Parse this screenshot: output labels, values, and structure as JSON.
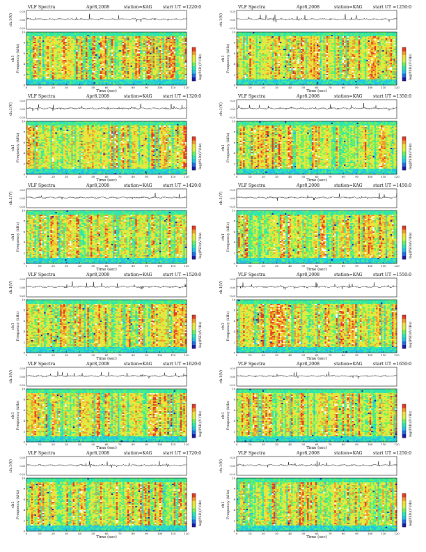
{
  "page": {
    "layout": "6 rows x 2 columns of spectrogram panels"
  },
  "colors": {
    "colormap": [
      "#1a1aa8",
      "#1e6fe6",
      "#22c3e6",
      "#2ee6b0",
      "#6cf060",
      "#d6f045",
      "#f0e13a",
      "#f09a2c",
      "#e63a22",
      "#ffffff"
    ],
    "trace": "#000000",
    "frame": "#000000"
  },
  "chart_data": [
    {
      "type": "heatmap",
      "title": "VLF Spectra",
      "date": "Apr8,2008",
      "station": "station=KAG",
      "start_ut": "start UT =1220:0",
      "ch_label": "ch.1(V)",
      "freq_label": "Frequency (kHz)",
      "channel_tag": "ch1",
      "xlabel": "Time (sec)",
      "colorbar_label": "log(PSD)(V²/Hz)",
      "x_ticks": [
        0,
        10,
        20,
        30,
        40,
        50,
        60,
        70,
        80,
        90,
        100,
        110,
        120
      ],
      "xlim": [
        0,
        120
      ],
      "y_ticks": [
        0,
        2,
        4,
        6,
        8,
        10
      ],
      "ylim": [
        0,
        10
      ],
      "ch_ticks": [
        "0.20",
        "0.00",
        "-0.20"
      ]
    },
    {
      "type": "heatmap",
      "title": "VLF Spectra",
      "date": "Apr8,2008",
      "station": "station=KAG",
      "start_ut": "start UT =1250:0",
      "ch_label": "ch.1(V)",
      "freq_label": "Frequency (kHz)",
      "channel_tag": "ch1",
      "xlabel": "Time (sec)",
      "colorbar_label": "log(PSD)(V²/Hz)",
      "x_ticks": [
        0,
        10,
        20,
        30,
        40,
        50,
        60,
        70,
        80,
        90,
        100,
        110,
        120
      ],
      "xlim": [
        0,
        120
      ],
      "y_ticks": [
        0,
        2,
        4,
        6,
        8,
        10
      ],
      "ylim": [
        0,
        10
      ],
      "ch_ticks": [
        "0.20",
        "0.00",
        "-0.20"
      ]
    },
    {
      "type": "heatmap",
      "title": "VLF Spectra",
      "date": "Apr8,2008",
      "station": "station=KAG",
      "start_ut": "start UT =1320:0",
      "ch_label": "ch.1(V)",
      "freq_label": "Frequency (kHz)",
      "channel_tag": "ch1",
      "xlabel": "Time (sec)",
      "colorbar_label": "log(PSD)(V²/Hz)",
      "x_ticks": [
        0,
        10,
        20,
        30,
        40,
        50,
        60,
        70,
        80,
        90,
        100,
        110,
        120
      ],
      "xlim": [
        0,
        120
      ],
      "y_ticks": [
        0,
        2,
        4,
        6,
        8,
        10
      ],
      "ylim": [
        0,
        10
      ],
      "ch_ticks": [
        "0.20",
        "0.00",
        "-0.20"
      ]
    },
    {
      "type": "heatmap",
      "title": "VLF Spectra",
      "date": "Apr8,2008",
      "station": "station=KAG",
      "start_ut": "start UT =1350:0",
      "ch_label": "ch.1(V)",
      "freq_label": "Frequency (kHz)",
      "channel_tag": "ch1",
      "xlabel": "Time (sec)",
      "colorbar_label": "log(PSD)(V²/Hz)",
      "x_ticks": [
        0,
        10,
        20,
        30,
        40,
        50,
        60,
        70,
        80,
        90,
        100,
        110,
        120
      ],
      "xlim": [
        0,
        120
      ],
      "y_ticks": [
        0,
        2,
        4,
        6,
        8,
        10
      ],
      "ylim": [
        0,
        10
      ],
      "ch_ticks": [
        "0.20",
        "0.00",
        "-0.20"
      ]
    },
    {
      "type": "heatmap",
      "title": "VLF Spectra",
      "date": "Apr8,2008",
      "station": "station=KAG",
      "start_ut": "start UT =1420:0",
      "ch_label": "ch.1(V)",
      "freq_label": "Frequency (kHz)",
      "channel_tag": "ch1",
      "xlabel": "Time (sec)",
      "colorbar_label": "log(PSD)(V²/Hz)",
      "x_ticks": [
        0,
        10,
        20,
        30,
        40,
        50,
        60,
        70,
        80,
        90,
        100,
        110,
        120
      ],
      "xlim": [
        0,
        120
      ],
      "y_ticks": [
        0,
        2,
        4,
        6,
        8,
        10
      ],
      "ylim": [
        0,
        10
      ],
      "ch_ticks": [
        "0.20",
        "0.00",
        "-0.20"
      ]
    },
    {
      "type": "heatmap",
      "title": "VLF Spectra",
      "date": "Apr8,2008",
      "station": "station=KAG",
      "start_ut": "start UT =1450:0",
      "ch_label": "ch.1(V)",
      "freq_label": "Frequency (kHz)",
      "channel_tag": "ch1",
      "xlabel": "Time (sec)",
      "colorbar_label": "log(PSD)(V²/Hz)",
      "x_ticks": [
        0,
        10,
        20,
        30,
        40,
        50,
        60,
        70,
        80,
        90,
        100,
        110,
        120
      ],
      "xlim": [
        0,
        120
      ],
      "y_ticks": [
        0,
        2,
        4,
        6,
        8,
        10
      ],
      "ylim": [
        0,
        10
      ],
      "ch_ticks": [
        "0.20",
        "0.00",
        "-0.20"
      ]
    },
    {
      "type": "heatmap",
      "title": "VLF Spectra",
      "date": "Apr8,2008",
      "station": "station=KAG",
      "start_ut": "start UT =1520:0",
      "ch_label": "ch.1(V)",
      "freq_label": "Frequency (kHz)",
      "channel_tag": "ch1",
      "xlabel": "Time (sec)",
      "colorbar_label": "log(PSD)(V²/Hz)",
      "x_ticks": [
        0,
        10,
        20,
        30,
        40,
        50,
        60,
        70,
        80,
        90,
        100,
        110,
        120
      ],
      "xlim": [
        0,
        120
      ],
      "y_ticks": [
        0,
        2,
        4,
        6,
        8,
        10
      ],
      "ylim": [
        0,
        10
      ],
      "ch_ticks": [
        "0.20",
        "0.00",
        "-0.20"
      ]
    },
    {
      "type": "heatmap",
      "title": "VLF Spectra",
      "date": "Apr8,2008",
      "station": "station=KAG",
      "start_ut": "start UT =1550:0",
      "ch_label": "ch.1(V)",
      "freq_label": "Frequency (kHz)",
      "channel_tag": "ch1",
      "xlabel": "Time (sec)",
      "colorbar_label": "log(PSD)(V²/Hz)",
      "x_ticks": [
        0,
        10,
        20,
        30,
        40,
        50,
        60,
        70,
        80,
        90,
        100,
        110,
        120
      ],
      "xlim": [
        0,
        120
      ],
      "y_ticks": [
        0,
        2,
        4,
        6,
        8,
        10
      ],
      "ylim": [
        0,
        10
      ],
      "ch_ticks": [
        "0.20",
        "0.00",
        "-0.20"
      ]
    },
    {
      "type": "heatmap",
      "title": "VLF Spectra",
      "date": "Apr8,2008",
      "station": "station=KAG",
      "start_ut": "start UT =1620:0",
      "ch_label": "ch.1(V)",
      "freq_label": "Frequency (kHz)",
      "channel_tag": "ch1",
      "xlabel": "Time (sec)",
      "colorbar_label": "log(PSD)(V²/Hz)",
      "x_ticks": [
        0,
        10,
        20,
        30,
        40,
        50,
        60,
        70,
        80,
        90,
        100,
        110,
        120
      ],
      "xlim": [
        0,
        120
      ],
      "y_ticks": [
        0,
        2,
        4,
        6,
        8,
        10
      ],
      "ylim": [
        0,
        10
      ],
      "ch_ticks": [
        "0.20",
        "0.00",
        "-0.20"
      ]
    },
    {
      "type": "heatmap",
      "title": "VLF Spectra",
      "date": "Apr8,2008",
      "station": "station=KAG",
      "start_ut": "start UT =1650:0",
      "ch_label": "ch.1(V)",
      "freq_label": "Frequency (kHz)",
      "channel_tag": "ch1",
      "xlabel": "Time (sec)",
      "colorbar_label": "log(PSD)(V²/Hz)",
      "x_ticks": [
        0,
        10,
        20,
        30,
        40,
        50,
        60,
        70,
        80,
        90,
        100,
        110,
        120
      ],
      "xlim": [
        0,
        120
      ],
      "y_ticks": [
        0,
        2,
        4,
        6,
        8,
        10
      ],
      "ylim": [
        0,
        10
      ],
      "ch_ticks": [
        "0.20",
        "0.00",
        "-0.20"
      ]
    },
    {
      "type": "heatmap",
      "title": "VLF Spectra",
      "date": "Apr8,2008",
      "station": "station=KAG",
      "start_ut": "start UT =1720:0",
      "ch_label": "ch.1(V)",
      "freq_label": "Frequency (kHz)",
      "channel_tag": "ch1",
      "xlabel": "Time (sec)",
      "colorbar_label": "log(PSD)(V²/Hz)",
      "x_ticks": [
        0,
        10,
        20,
        30,
        40,
        50,
        60,
        70,
        80,
        90,
        100,
        110,
        120
      ],
      "xlim": [
        0,
        120
      ],
      "y_ticks": [
        0,
        2,
        4,
        6,
        8,
        10
      ],
      "ylim": [
        0,
        10
      ],
      "ch_ticks": [
        "0.20",
        "0.00",
        "-0.20"
      ]
    },
    {
      "type": "heatmap",
      "title": "VLF Spectra",
      "date": "Apr8,2008",
      "station": "station=KAG",
      "start_ut": "start UT =1250:0",
      "ch_label": "ch.1(V)",
      "freq_label": "Frequency (kHz)",
      "channel_tag": "ch1",
      "xlabel": "Time (sec)",
      "colorbar_label": "log(PSD)(V²/Hz)",
      "x_ticks": [
        0,
        10,
        20,
        30,
        40,
        50,
        60,
        70,
        80,
        90,
        100,
        110,
        120
      ],
      "xlim": [
        0,
        120
      ],
      "y_ticks": [
        0,
        2,
        4,
        6,
        8,
        10
      ],
      "ylim": [
        0,
        10
      ],
      "ch_ticks": [
        "0.20",
        "0.00",
        "-0.20"
      ]
    }
  ]
}
